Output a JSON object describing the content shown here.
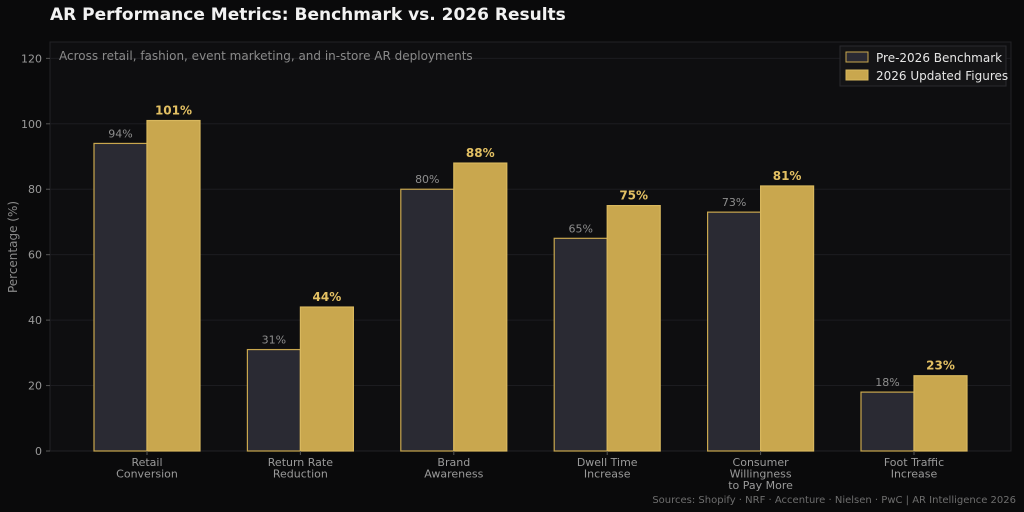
{
  "chart_data": {
    "type": "bar",
    "title": "AR Performance Metrics: Benchmark vs. 2026 Results",
    "subtitle": "Across retail, fashion, event marketing, and in-store AR deployments",
    "ylabel": "Percentage (%)",
    "xlabel": "",
    "ylim": [
      0,
      125
    ],
    "yticks": [
      0,
      20,
      40,
      60,
      80,
      100,
      120
    ],
    "grid": true,
    "legend_position": "top-right",
    "categories": [
      [
        "Retail",
        "Conversion"
      ],
      [
        "Return Rate",
        "Reduction"
      ],
      [
        "Brand",
        "Awareness"
      ],
      [
        "Dwell Time",
        "Increase"
      ],
      [
        "Consumer",
        "Willingness",
        "to Pay More"
      ],
      [
        "Foot Traffic",
        "Increase"
      ]
    ],
    "series": [
      {
        "name": "Pre-2026 Benchmark",
        "values": [
          94,
          31,
          80,
          65,
          73,
          18
        ],
        "color": "#2a2a33",
        "edge": "#c9a74e"
      },
      {
        "name": "2026 Updated Figures",
        "values": [
          101,
          44,
          88,
          75,
          81,
          23
        ],
        "color": "#c9a74e",
        "edge": "#d9b85e"
      }
    ],
    "value_suffix": "%",
    "source": "Sources: Shopify · NRF · Accenture · Nielsen · PwC  |  AR Intelligence 2026"
  }
}
